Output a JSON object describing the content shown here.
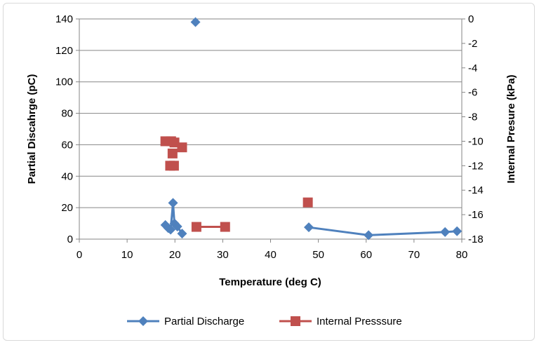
{
  "chart_data": {
    "type": "scatter",
    "title": "",
    "xlabel": "Temperature (deg C)",
    "ylabel": "Partial Discahrge (pC)",
    "y2label": "Internal Presure (kPa)",
    "xlim": [
      0,
      80
    ],
    "ylim": [
      0,
      140
    ],
    "y2lim": [
      -18,
      0
    ],
    "xticks": [
      0,
      10,
      20,
      30,
      40,
      50,
      60,
      70,
      80
    ],
    "yticks": [
      0,
      20,
      40,
      60,
      80,
      100,
      120,
      140
    ],
    "y2ticks": [
      0,
      -2,
      -4,
      -6,
      -8,
      -10,
      -12,
      -14,
      -16,
      -18
    ],
    "grid": "horizontal",
    "legend_position": "bottom",
    "series": [
      {
        "name": "Partial Discharge",
        "axis": "left",
        "color": "#4f81bd",
        "marker": "diamond",
        "points": [
          [
            18,
            9
          ],
          [
            18.6,
            7
          ],
          [
            19.1,
            6
          ],
          [
            19.6,
            23
          ],
          [
            19.9,
            10
          ],
          [
            20.5,
            8
          ],
          [
            21.5,
            3.5
          ],
          null,
          [
            24.3,
            138
          ],
          null,
          [
            48,
            7.5
          ],
          [
            60.5,
            2.5
          ],
          [
            76.5,
            4.5
          ],
          [
            79,
            5
          ]
        ]
      },
      {
        "name": "Internal Presssure",
        "axis": "right",
        "color": "#c0504d",
        "marker": "square",
        "points": [
          [
            18,
            -10
          ],
          null,
          [
            19.2,
            -10
          ],
          null,
          [
            19.9,
            -10.1
          ],
          null,
          [
            21.5,
            -10.5
          ],
          null,
          [
            19.5,
            -11
          ],
          null,
          [
            19,
            -12
          ],
          null,
          [
            19.8,
            -12
          ],
          null,
          [
            24.5,
            -17
          ],
          [
            30.5,
            -17
          ],
          null,
          [
            47.8,
            -15
          ]
        ]
      }
    ]
  }
}
